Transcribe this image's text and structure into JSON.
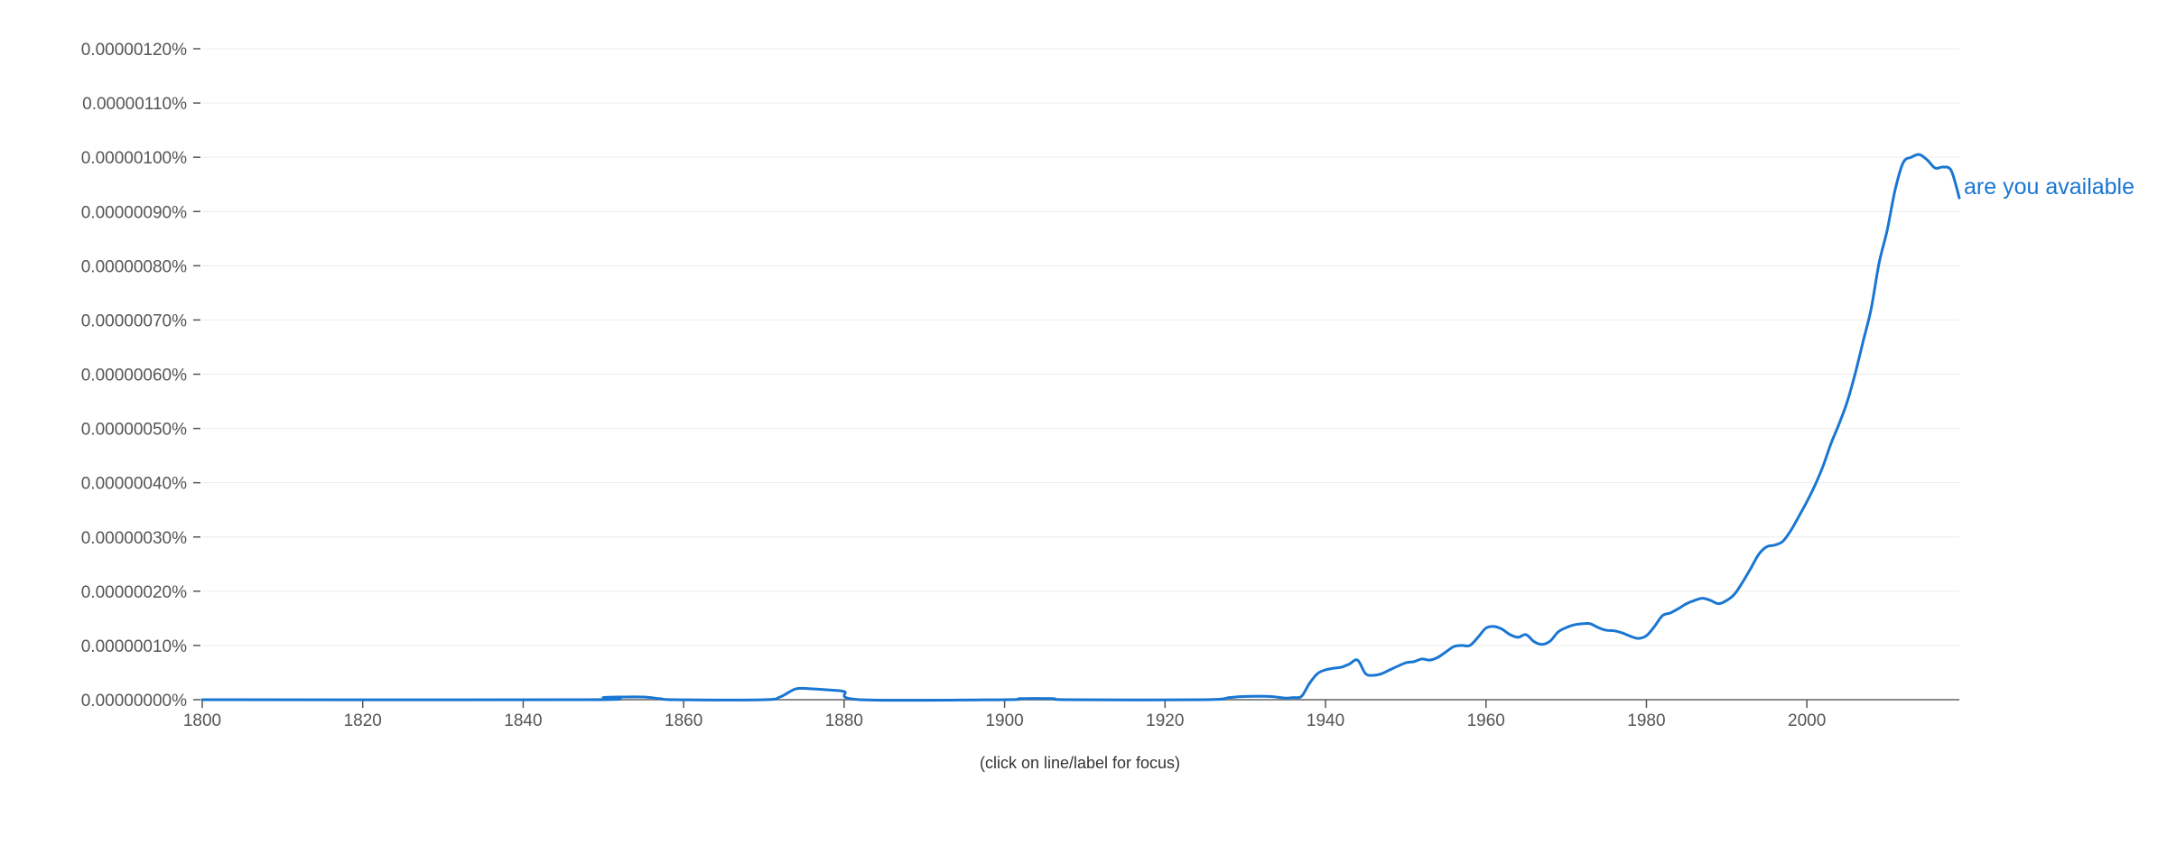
{
  "chart_data": {
    "type": "line",
    "xlabel": "",
    "ylabel": "",
    "xlim": [
      1800,
      2019
    ],
    "ylim": [
      0,
      1.2e-06
    ],
    "x_ticks": [
      1800,
      1820,
      1840,
      1860,
      1880,
      1900,
      1920,
      1940,
      1960,
      1980,
      2000
    ],
    "x_tick_labels": [
      "1800",
      "1820",
      "1840",
      "1860",
      "1880",
      "1900",
      "1920",
      "1940",
      "1960",
      "1980",
      "2000"
    ],
    "y_ticks": [
      0,
      1e-07,
      2e-07,
      3e-07,
      4e-07,
      5e-07,
      6e-07,
      7e-07,
      8e-07,
      9e-07,
      1e-06,
      1.1e-06,
      1.2e-06
    ],
    "y_tick_labels": [
      "0.00000000%",
      "0.00000010%",
      "0.00000020%",
      "0.00000030%",
      "0.00000040%",
      "0.00000050%",
      "0.00000060%",
      "0.00000070%",
      "0.00000080%",
      "0.00000090%",
      "0.00000100%",
      "0.00000110%",
      "0.00000120%"
    ],
    "grid": true,
    "series": [
      {
        "name": "are you available",
        "color": "#1976d2",
        "x": [
          1800,
          1848,
          1850,
          1852,
          1855,
          1857,
          1859,
          1870,
          1872,
          1874,
          1876,
          1878,
          1880,
          1882,
          1900,
          1902,
          1906,
          1908,
          1925,
          1928,
          1930,
          1933,
          1935,
          1936,
          1937,
          1938,
          1939,
          1940,
          1941,
          1942,
          1943,
          1944,
          1945,
          1946,
          1947,
          1948,
          1950,
          1951,
          1952,
          1953,
          1954,
          1955,
          1956,
          1957,
          1958,
          1959,
          1960,
          1961,
          1962,
          1963,
          1964,
          1965,
          1966,
          1967,
          1968,
          1969,
          1970,
          1971,
          1972,
          1973,
          1974,
          1975,
          1976,
          1977,
          1978,
          1979,
          1980,
          1981,
          1982,
          1983,
          1984,
          1985,
          1986,
          1987,
          1988,
          1989,
          1990,
          1991,
          1992,
          1993,
          1994,
          1995,
          1996,
          1997,
          1998,
          1999,
          2000,
          2001,
          2002,
          2003,
          2004,
          2005,
          2006,
          2007,
          2008,
          2009,
          2010,
          2011,
          2012,
          2013,
          2014,
          2015,
          2016,
          2017,
          2018,
          2019
        ],
        "y": [
          0,
          0,
          4e-09,
          5e-09,
          5e-09,
          2e-09,
          0,
          0,
          5e-09,
          2e-08,
          2e-08,
          1.8e-08,
          1.5e-08,
          0,
          0,
          2e-09,
          2e-09,
          0,
          0,
          4e-09,
          6e-09,
          6e-09,
          3e-09,
          4e-09,
          6e-09,
          3e-08,
          4.8e-08,
          5.5e-08,
          5.8e-08,
          6e-08,
          6.6e-08,
          7.3e-08,
          4.8e-08,
          4.5e-08,
          4.8e-08,
          5.5e-08,
          6.8e-08,
          7e-08,
          7.5e-08,
          7.3e-08,
          7.8e-08,
          8.8e-08,
          9.8e-08,
          1e-07,
          1e-07,
          1.15e-07,
          1.32e-07,
          1.35e-07,
          1.3e-07,
          1.2e-07,
          1.15e-07,
          1.2e-07,
          1.07e-07,
          1.02e-07,
          1.08e-07,
          1.25e-07,
          1.33e-07,
          1.38e-07,
          1.4e-07,
          1.4e-07,
          1.33e-07,
          1.28e-07,
          1.27e-07,
          1.23e-07,
          1.17e-07,
          1.13e-07,
          1.18e-07,
          1.35e-07,
          1.55e-07,
          1.6e-07,
          1.68e-07,
          1.77e-07,
          1.83e-07,
          1.87e-07,
          1.83e-07,
          1.77e-07,
          1.83e-07,
          1.95e-07,
          2.17e-07,
          2.42e-07,
          2.68e-07,
          2.82e-07,
          2.85e-07,
          2.92e-07,
          3.12e-07,
          3.38e-07,
          3.65e-07,
          3.95e-07,
          4.3e-07,
          4.72e-07,
          5.08e-07,
          5.48e-07,
          6e-07,
          6.6e-07,
          7.2e-07,
          8.05e-07,
          8.65e-07,
          9.4e-07,
          9.9e-07,
          1e-06,
          1.005e-06,
          9.95e-07,
          9.8e-07,
          9.82e-07,
          9.75e-07,
          9.25e-07
        ]
      }
    ],
    "annotations": [
      "(click on line/label for focus)"
    ]
  }
}
